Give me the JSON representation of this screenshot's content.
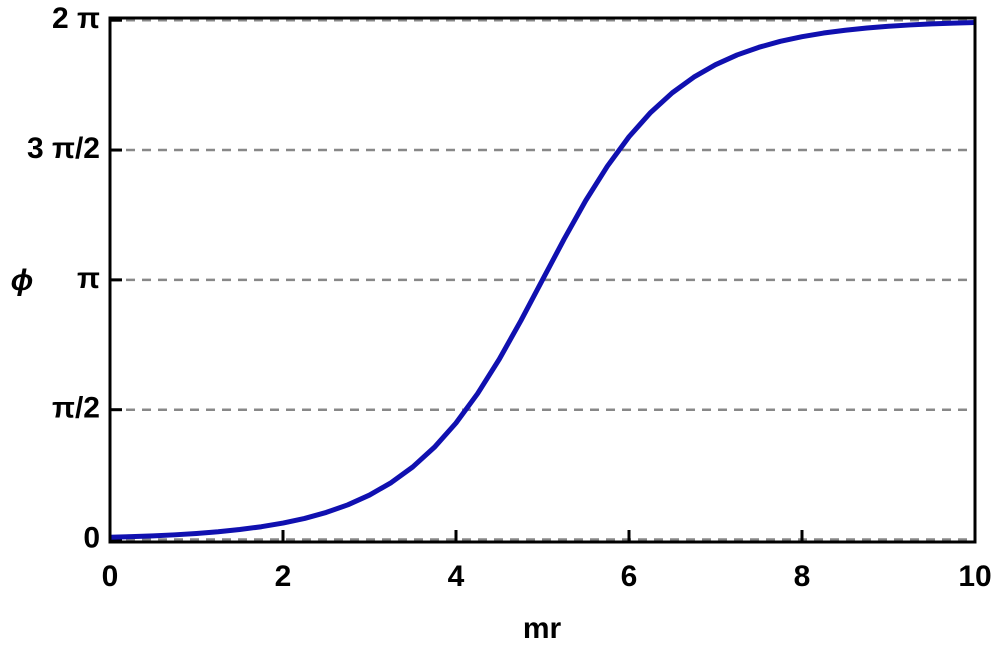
{
  "chart_data": {
    "type": "line",
    "x_label": "mr",
    "y_label": "ϕ",
    "x": [
      0,
      0.25,
      0.5,
      0.75,
      1,
      1.25,
      1.5,
      1.75,
      2,
      2.25,
      2.5,
      2.75,
      3,
      3.25,
      3.5,
      3.75,
      4,
      4.25,
      4.5,
      4.75,
      5,
      5.25,
      5.5,
      5.75,
      6,
      6.25,
      6.5,
      6.75,
      7,
      7.25,
      7.5,
      7.75,
      8,
      8.25,
      8.5,
      8.75,
      9,
      9.25,
      9.5,
      9.75,
      10
    ],
    "series": [
      {
        "color": "#1010b0",
        "values": [
          0.027,
          0.035,
          0.044,
          0.057,
          0.073,
          0.094,
          0.121,
          0.155,
          0.199,
          0.255,
          0.328,
          0.42,
          0.538,
          0.688,
          0.878,
          1.116,
          1.41,
          1.766,
          2.181,
          2.648,
          3.142,
          3.635,
          4.102,
          4.517,
          4.873,
          5.167,
          5.405,
          5.595,
          5.745,
          5.863,
          5.955,
          6.028,
          6.084,
          6.128,
          6.162,
          6.189,
          6.21,
          6.226,
          6.239,
          6.248,
          6.256
        ]
      }
    ],
    "xlim": [
      0,
      10
    ],
    "xticks": [
      0,
      2,
      4,
      6,
      8,
      10
    ],
    "ylim": [
      -0.03,
      6.31
    ],
    "yticks": [
      0,
      {
        "value": 1.5708,
        "label": "π/2"
      },
      {
        "value": 3.1416,
        "label": "π"
      },
      {
        "value": 4.7124,
        "label": "3 π/2"
      },
      {
        "value": 6.2832,
        "label": "2 π"
      }
    ],
    "grid": true
  }
}
